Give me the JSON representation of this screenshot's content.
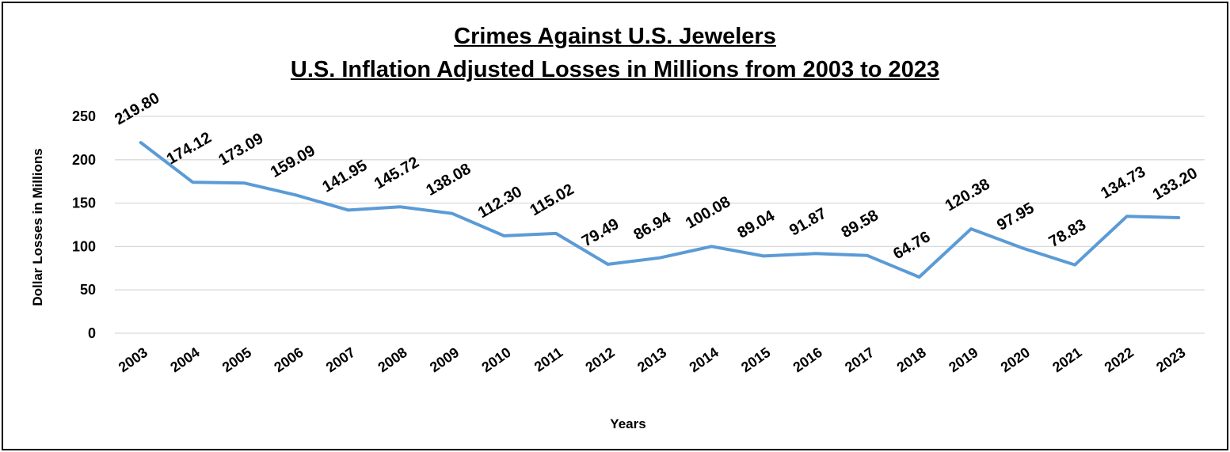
{
  "chart_data": {
    "type": "line",
    "title": "Crimes Against U.S. Jewelers",
    "subtitle": "U.S. Inflation Adjusted Losses in Millions from 2003 to 2023",
    "xlabel": "Years",
    "ylabel": "Dollar Losses in Millions",
    "categories": [
      "2003",
      "2004",
      "2005",
      "2006",
      "2007",
      "2008",
      "2009",
      "2010",
      "2011",
      "2012",
      "2013",
      "2014",
      "2015",
      "2016",
      "2017",
      "2018",
      "2019",
      "2020",
      "2021",
      "2022",
      "2023"
    ],
    "series": [
      {
        "values": [
          219.8,
          174.12,
          173.09,
          159.09,
          141.95,
          145.72,
          138.08,
          112.3,
          115.02,
          79.49,
          86.94,
          100.08,
          89.04,
          91.87,
          89.58,
          64.76,
          120.38,
          97.95,
          78.83,
          134.73,
          133.2
        ],
        "labels": [
          "219.80",
          "174.12",
          "173.09",
          "159.09",
          "141.95",
          "145.72",
          "138.08",
          "112.30",
          "115.02",
          "79.49",
          "86.94",
          "100.08",
          "89.04",
          "91.87",
          "89.58",
          "64.76",
          "120.38",
          "97.95",
          "78.83",
          "134.73",
          "133.20"
        ]
      }
    ],
    "ylim": [
      0,
      250
    ],
    "yticks": [
      "0",
      "50",
      "100",
      "150",
      "200",
      "250"
    ],
    "grid": true,
    "line_color": "#5b9bd5",
    "grid_color": "#d9d9d9"
  }
}
